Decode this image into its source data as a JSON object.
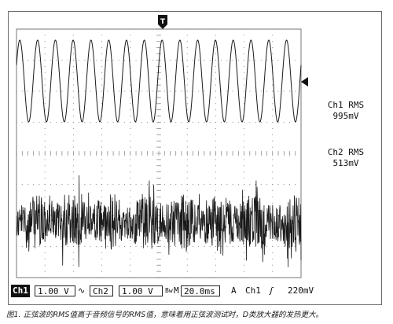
{
  "trigger_marker": "T",
  "readouts": {
    "ch1_label": "Ch1 RMS",
    "ch1_value": "995mV",
    "ch2_label": "Ch2 RMS",
    "ch2_value": "513mV"
  },
  "status_bar": {
    "ch1": "Ch1",
    "ch1_scale": "1.00 V",
    "ch1_coupling": "∿",
    "ch2": "Ch2",
    "ch2_scale": "1.00 V",
    "timebase_prefix": "M",
    "timebase": "20.0ms",
    "mode": "A",
    "trigger_source": "Ch1",
    "trigger_slope": "ʃ",
    "trigger_level": "220mV"
  },
  "caption": "图1. 正弦波的RMS值高于音频信号的RMS值，意味着用正弦波测试时，D类放大器的发热更大。",
  "signals": {
    "ch1": {
      "shape": "sine",
      "cycles": 16,
      "rms_mV": 995
    },
    "ch2": {
      "shape": "audio-noise",
      "rms_mV": 513
    }
  },
  "colors": {
    "trace": "#1a1a1a",
    "grid": "#7a7a7a",
    "background": "#ffffff"
  }
}
